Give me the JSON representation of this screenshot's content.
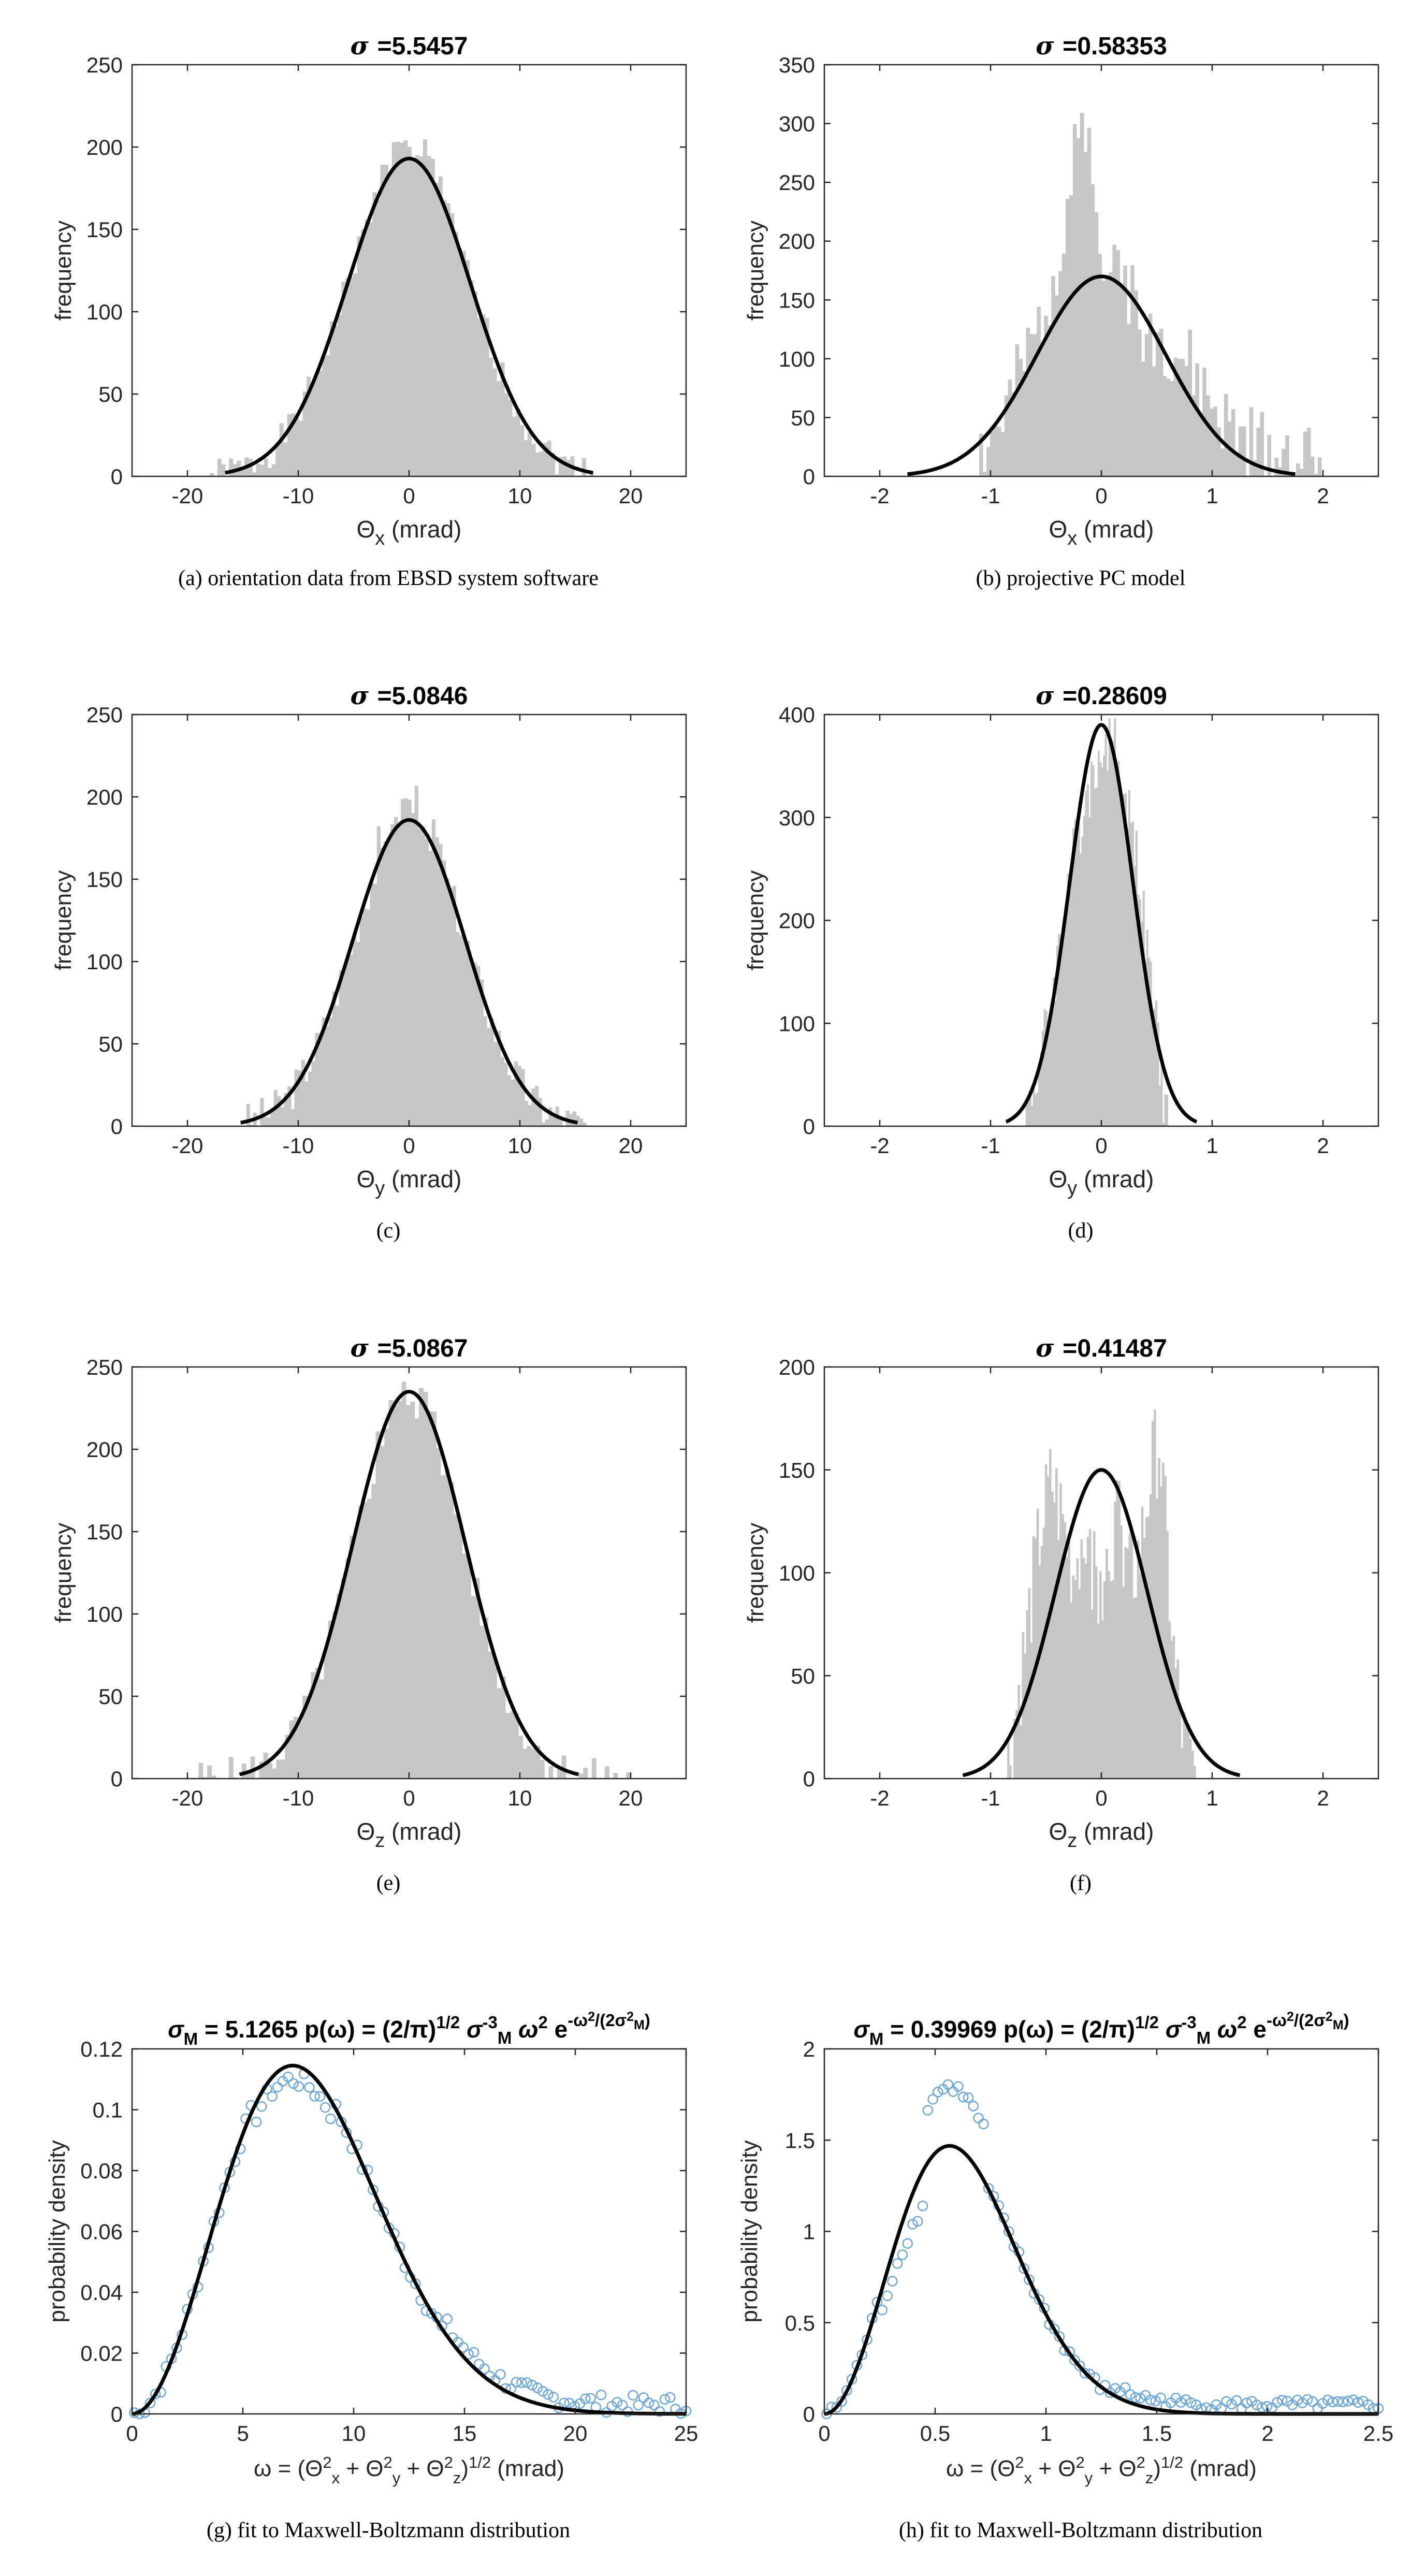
{
  "chart_data": [
    {
      "type": "histogram",
      "id": "a",
      "title": {
        "symbol": "σ",
        "value": "=5.5457"
      },
      "caption": "(a) orientation data from EBSD system software",
      "xlabel": {
        "main": "Θ",
        "sub": "x",
        "unit": " (mrad)"
      },
      "ylabel": "frequency",
      "xlim": [
        -25,
        25
      ],
      "ylim": [
        0,
        250
      ],
      "xticks": [
        -20,
        -10,
        0,
        10,
        20
      ],
      "yticks": [
        0,
        50,
        100,
        150,
        200,
        250
      ],
      "hist": {
        "range": [
          -18,
          17
        ],
        "bins": 100,
        "sigma": 5.5457,
        "noise": [
          -10,
          10,
          10,
          -10,
          10,
          -10
        ],
        "seed": 1
      },
      "fit": {
        "kind": "gauss",
        "sigma": 5.5457,
        "peak": 193,
        "range": [
          -16.6,
          16.6
        ]
      }
    },
    {
      "type": "histogram",
      "id": "b",
      "title": {
        "symbol": "σ",
        "value": "=0.58353"
      },
      "caption": "(b) projective PC model",
      "xlabel": {
        "main": "Θ",
        "sub": "x",
        "unit": " (mrad)"
      },
      "ylabel": "frequency",
      "xlim": [
        -2.5,
        2.5
      ],
      "ylim": [
        0,
        350
      ],
      "xticks": [
        -2,
        -1,
        0,
        1,
        2
      ],
      "yticks": [
        0,
        50,
        100,
        150,
        200,
        250,
        300,
        350
      ],
      "hist": {
        "range": [
          -1.2,
          2.05
        ],
        "bins": 100,
        "sigma": 0.58353,
        "noise": [
          -30,
          40,
          -30,
          40,
          -20,
          20
        ],
        "seed": 2,
        "points": [
          [
            -1.2,
            2
          ],
          [
            -0.9,
            40
          ],
          [
            -0.6,
            110
          ],
          [
            -0.4,
            180
          ],
          [
            -0.25,
            250
          ],
          [
            -0.15,
            300
          ],
          [
            -0.05,
            210
          ],
          [
            0.1,
            170
          ],
          [
            0.3,
            135
          ],
          [
            0.5,
            115
          ],
          [
            0.7,
            100
          ],
          [
            0.9,
            70
          ],
          [
            1.1,
            40
          ],
          [
            1.3,
            22
          ],
          [
            1.6,
            15
          ],
          [
            1.8,
            12
          ],
          [
            2.0,
            3
          ],
          [
            2.05,
            0
          ]
        ]
      },
      "fit": {
        "kind": "gauss",
        "sigma": 0.58353,
        "peak": 170,
        "range": [
          -1.75,
          1.75
        ]
      }
    },
    {
      "type": "histogram",
      "id": "c",
      "title": {
        "symbol": "σ",
        "value": "=5.0846"
      },
      "caption": "(c)",
      "xlabel": {
        "main": "Θ",
        "sub": "y",
        "unit": " (mrad)"
      },
      "ylabel": "frequency",
      "xlim": [
        -25,
        25
      ],
      "ylim": [
        0,
        250
      ],
      "xticks": [
        -20,
        -10,
        0,
        10,
        20
      ],
      "yticks": [
        0,
        50,
        100,
        150,
        200,
        250
      ],
      "hist": {
        "range": [
          -15,
          16
        ],
        "bins": 100,
        "sigma": 5.0846,
        "noise": [
          -12,
          12,
          15,
          -10,
          10,
          -10
        ],
        "seed": 3
      },
      "fit": {
        "kind": "gauss",
        "sigma": 5.0846,
        "peak": 186,
        "range": [
          -15.2,
          15.2
        ]
      }
    },
    {
      "type": "histogram",
      "id": "d",
      "title": {
        "symbol": "σ",
        "value": "=0.28609"
      },
      "caption": "(d)",
      "xlabel": {
        "main": "Θ",
        "sub": "y",
        "unit": " (mrad)"
      },
      "ylabel": "frequency",
      "xlim": [
        -2.5,
        2.5
      ],
      "ylim": [
        0,
        400
      ],
      "xticks": [
        -2,
        -1,
        0,
        1,
        2
      ],
      "yticks": [
        0,
        100,
        200,
        300,
        400
      ],
      "hist": {
        "range": [
          -0.7,
          0.6
        ],
        "bins": 80,
        "sigma": 0.28609,
        "noise": [
          -30,
          30,
          -30,
          30,
          -20,
          20
        ],
        "seed": 4,
        "points": [
          [
            -0.7,
            5
          ],
          [
            -0.6,
            40
          ],
          [
            -0.5,
            95
          ],
          [
            -0.4,
            160
          ],
          [
            -0.3,
            240
          ],
          [
            -0.2,
            290
          ],
          [
            -0.1,
            330
          ],
          [
            0.0,
            360
          ],
          [
            0.1,
            370
          ],
          [
            0.2,
            330
          ],
          [
            0.3,
            280
          ],
          [
            0.4,
            180
          ],
          [
            0.5,
            90
          ],
          [
            0.55,
            40
          ],
          [
            0.6,
            0
          ]
        ]
      },
      "fit": {
        "kind": "gauss",
        "sigma": 0.28609,
        "peak": 390,
        "range": [
          -0.86,
          0.86
        ]
      }
    },
    {
      "type": "histogram",
      "id": "e",
      "title": {
        "symbol": "σ",
        "value": "=5.0867"
      },
      "caption": "(e)",
      "xlabel": {
        "main": "Θ",
        "sub": "z",
        "unit": " (mrad)"
      },
      "ylabel": "frequency",
      "xlim": [
        -25,
        25
      ],
      "ylim": [
        0,
        250
      ],
      "xticks": [
        -20,
        -10,
        0,
        10,
        20
      ],
      "yticks": [
        0,
        50,
        100,
        150,
        200,
        250
      ],
      "hist": {
        "range": [
          -19,
          20
        ],
        "bins": 100,
        "sigma": 5.0867,
        "noise": [
          -12,
          12,
          12,
          -12,
          10,
          -10
        ],
        "seed": 5,
        "peakScale": 0.975
      },
      "fit": {
        "kind": "gauss",
        "sigma": 5.0867,
        "peak": 235,
        "range": [
          -15.3,
          15.3
        ]
      }
    },
    {
      "type": "histogram",
      "id": "f",
      "title": {
        "symbol": "σ",
        "value": "=0.41487"
      },
      "caption": "(f)",
      "xlabel": {
        "main": "Θ",
        "sub": "z",
        "unit": " (mrad)"
      },
      "ylabel": "frequency",
      "xlim": [
        -2.5,
        2.5
      ],
      "ylim": [
        0,
        200
      ],
      "xticks": [
        -2,
        -1,
        0,
        1,
        2
      ],
      "yticks": [
        0,
        50,
        100,
        150,
        200
      ],
      "hist": {
        "range": [
          -0.85,
          0.85
        ],
        "bins": 90,
        "sigma": 0.41487,
        "noise": [
          -25,
          25,
          -25,
          25,
          -20,
          20
        ],
        "seed": 6,
        "points": [
          [
            -0.85,
            5
          ],
          [
            -0.7,
            60
          ],
          [
            -0.55,
            120
          ],
          [
            -0.45,
            145
          ],
          [
            -0.35,
            125
          ],
          [
            -0.25,
            100
          ],
          [
            -0.15,
            110
          ],
          [
            -0.05,
            95
          ],
          [
            0.05,
            105
          ],
          [
            0.15,
            120
          ],
          [
            0.25,
            95
          ],
          [
            0.35,
            110
          ],
          [
            0.45,
            150
          ],
          [
            0.52,
            165
          ],
          [
            0.58,
            120
          ],
          [
            0.65,
            60
          ],
          [
            0.75,
            15
          ],
          [
            0.85,
            0
          ]
        ]
      },
      "fit": {
        "kind": "gauss",
        "sigma": 0.41487,
        "peak": 150,
        "range": [
          -1.25,
          1.25
        ]
      }
    },
    {
      "type": "scatter+line",
      "id": "g",
      "title": {
        "text": "σ_M = 5.1265  p(ω) = (2/π)^(1/2) σ_M^(-3) ω² e^(−ω²/(2σ_M²))",
        "value": "5.1265"
      },
      "caption": "(g) fit to Maxwell-Boltzmann distribution",
      "xlabel": "ω = (Θx² + Θy² + Θz²)^(1/2) (mrad)",
      "ylabel": "probability density",
      "xlim": [
        0,
        25
      ],
      "ylim": [
        0,
        0.12
      ],
      "xticks": [
        0,
        5,
        10,
        15,
        20,
        25
      ],
      "yticks": [
        0,
        0.02,
        0.04,
        0.06,
        0.08,
        0.1,
        0.12
      ],
      "ytickLabels": [
        "0",
        "0.02",
        "0.04",
        "0.06",
        "0.08",
        "0.1",
        "0.12"
      ],
      "scatter": {
        "range": [
          0.1,
          25
        ],
        "count": 105,
        "sigma": 5.1265,
        "noise": 0.006,
        "seed": 7,
        "warp": "g"
      },
      "fit": {
        "kind": "maxwell",
        "sigma": 5.1265,
        "range": [
          0,
          25
        ]
      }
    },
    {
      "type": "scatter+line",
      "id": "h",
      "title": {
        "text": "σ_M = 0.39969  p(ω) = (2/π)^(1/2) σ_M^(-3) ω² e^(−ω²/(2σ_M²))",
        "value": "0.39969"
      },
      "caption": "(h) fit to Maxwell-Boltzmann distribution",
      "xlabel": "ω = (Θx² + Θy² + Θz²)^(1/2) (mrad)",
      "ylabel": "probability density",
      "xlim": [
        0,
        2.5
      ],
      "ylim": [
        0,
        2
      ],
      "xticks": [
        0,
        0.5,
        1,
        1.5,
        2,
        2.5
      ],
      "yticks": [
        0,
        0.5,
        1,
        1.5,
        2
      ],
      "ytickLabels": [
        "0",
        "0.5",
        "1",
        "1.5",
        "2"
      ],
      "scatter": {
        "range": [
          0.01,
          2.5
        ],
        "count": 110,
        "sigma": 0.39969,
        "noise": 0.06,
        "seed": 8,
        "warp": "h"
      },
      "fit": {
        "kind": "maxwell",
        "sigma": 0.39969,
        "range": [
          0,
          2.5
        ]
      }
    }
  ],
  "colors": {
    "bar": "#c6c6c6",
    "fit": "#000000",
    "marker": "#6ba6d8",
    "axis": "#000000"
  }
}
